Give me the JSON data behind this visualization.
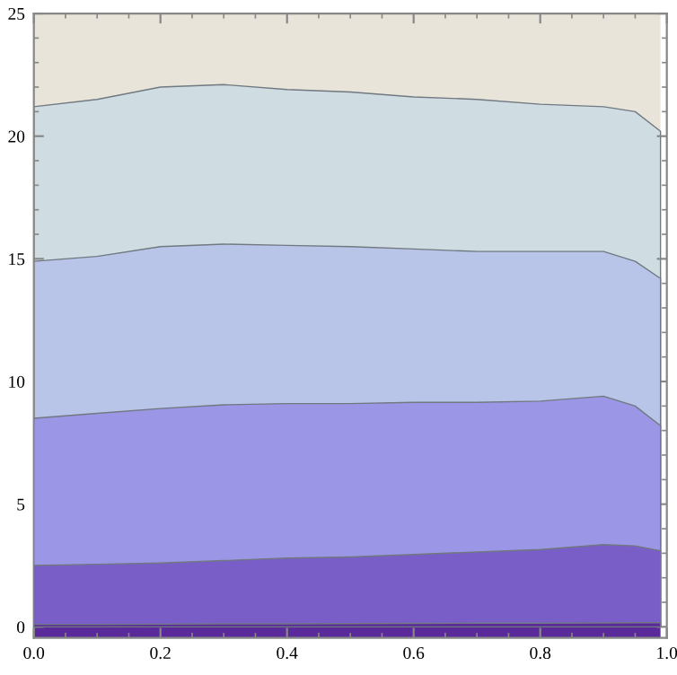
{
  "chart_data": {
    "type": "area",
    "x": [
      0,
      0.1,
      0.2,
      0.3,
      0.4,
      0.5,
      0.6,
      0.7,
      0.8,
      0.9,
      0.95,
      0.99
    ],
    "series": [
      {
        "color": "#cfdde3",
        "values": [
          21.2,
          21.5,
          22.0,
          22.1,
          21.9,
          21.8,
          21.6,
          21.5,
          21.3,
          21.2,
          21.0,
          20.2
        ]
      },
      {
        "color": "#b8c4e8",
        "values": [
          14.9,
          15.1,
          15.5,
          15.6,
          15.55,
          15.5,
          15.4,
          15.3,
          15.3,
          15.3,
          14.9,
          14.2
        ]
      },
      {
        "color": "#9c96e6",
        "values": [
          8.5,
          8.7,
          8.9,
          9.05,
          9.1,
          9.1,
          9.15,
          9.15,
          9.2,
          9.4,
          9.0,
          8.2
        ]
      },
      {
        "color": "#7a5ec8",
        "values": [
          2.5,
          2.55,
          2.6,
          2.7,
          2.8,
          2.85,
          2.95,
          3.05,
          3.15,
          3.35,
          3.3,
          3.1
        ]
      },
      {
        "color": "#5a2a9a",
        "values": [
          0.1,
          0.1,
          0.11,
          0.12,
          0.12,
          0.13,
          0.14,
          0.15,
          0.15,
          0.16,
          0.17,
          0.17
        ]
      }
    ],
    "bands": [
      {
        "axis": "y",
        "from": -0.45,
        "to": 0,
        "color": "#5a2a9a"
      },
      {
        "axis": "y",
        "from": 20.2,
        "to": 25,
        "color": "#e8e4da"
      }
    ],
    "xlim": [
      0,
      1
    ],
    "ylim": [
      -0.45,
      25
    ],
    "xticks": [
      {
        "value": 0,
        "label": "0.0"
      },
      0.2,
      0.4,
      0.6,
      0.8,
      {
        "value": 1,
        "label": "1.0"
      }
    ],
    "yticks": [
      0,
      5,
      10,
      15,
      20,
      25
    ],
    "grid": false,
    "legend": false
  }
}
